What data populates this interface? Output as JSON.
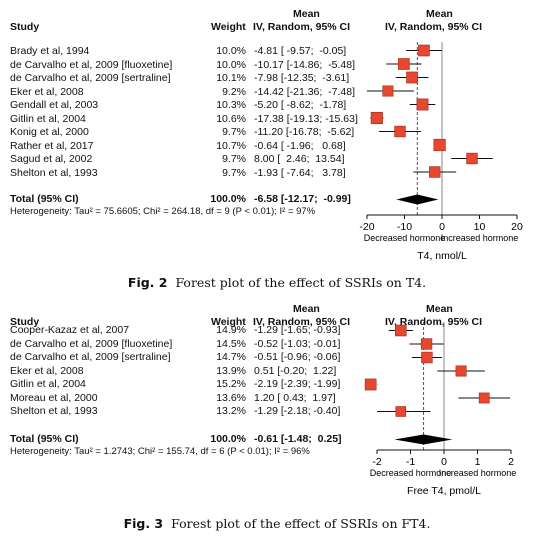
{
  "chart_data": [
    {
      "type": "forest",
      "header": {
        "study": "Study",
        "weight": "Weight",
        "ci_top": "Mean",
        "ci_bottom": "IV, Random, 95% CI",
        "plot_top": "Mean",
        "plot_bottom": "IV, Random, 95% CI"
      },
      "studies": [
        {
          "name": "Brady et al, 1994",
          "weight": "10.0%",
          "ci_text": "-4.81 [ -9.57;  -0.05]",
          "mean": -4.81,
          "lo": -9.57,
          "hi": -0.05,
          "w": 10.0
        },
        {
          "name": "de Carvalho et al, 2009 [fluoxetine]",
          "weight": "10.0%",
          "ci_text": "-10.17 [-14.86;  -5.48]",
          "mean": -10.17,
          "lo": -14.86,
          "hi": -5.48,
          "w": 10.0
        },
        {
          "name": "de Carvalho et al, 2009 [sertraline]",
          "weight": "10.1%",
          "ci_text": "-7.98 [-12.35;  -3.61]",
          "mean": -7.98,
          "lo": -12.35,
          "hi": -3.61,
          "w": 10.1
        },
        {
          "name": "Eker et al, 2008",
          "weight": "9.2%",
          "ci_text": "-14.42 [-21.36;  -7.48]",
          "mean": -14.42,
          "lo": -21.36,
          "hi": -7.48,
          "w": 9.2
        },
        {
          "name": "Gendall et al, 2003",
          "weight": "10.3%",
          "ci_text": "-5.20 [ -8.62;  -1.78]",
          "mean": -5.2,
          "lo": -8.62,
          "hi": -1.78,
          "w": 10.3
        },
        {
          "name": "Gitlin et al, 2004",
          "weight": "10.6%",
          "ci_text": "-17.38 [-19.13; -15.63]",
          "mean": -17.38,
          "lo": -19.13,
          "hi": -15.63,
          "w": 10.6
        },
        {
          "name": "Konig et al, 2000",
          "weight": "9.7%",
          "ci_text": "-11.20 [-16.78;  -5.62]",
          "mean": -11.2,
          "lo": -16.78,
          "hi": -5.62,
          "w": 9.7
        },
        {
          "name": "Rather et al, 2017",
          "weight": "10.7%",
          "ci_text": "-0.64 [ -1.96;   0.68]",
          "mean": -0.64,
          "lo": -1.96,
          "hi": 0.68,
          "w": 10.7
        },
        {
          "name": "Sagud et al, 2002",
          "weight": "9.7%",
          "ci_text": "8.00 [  2.46;  13.54]",
          "mean": 8.0,
          "lo": 2.46,
          "hi": 13.54,
          "w": 9.7
        },
        {
          "name": "Shelton et al, 1993",
          "weight": "9.7%",
          "ci_text": "-1.93 [ -7.64;   3.78]",
          "mean": -1.93,
          "lo": -7.64,
          "hi": 3.78,
          "w": 9.7
        }
      ],
      "total": {
        "label": "Total (95% CI)",
        "weight": "100.0%",
        "ci_text": "-6.58 [-12.17;  -0.99]",
        "mean": -6.58,
        "lo": -12.17,
        "hi": -0.99
      },
      "heterogeneity": "Heterogeneity: Tau² = 75.6605; Chi² = 264.18, df = 9 (P < 0.01); I² = 97%",
      "xlim": [
        -20,
        20
      ],
      "ticks": [
        -20,
        -10,
        0,
        10,
        20
      ],
      "left_label": "Decreased hormone",
      "right_label": "Increased hormone",
      "xlabel": "T4, nmol/L",
      "caption_num": "Fig. 2",
      "caption_text": "Forest plot of the effect of SSRIs on T4."
    },
    {
      "type": "forest",
      "header": {
        "study": "Study",
        "weight": "Weight",
        "ci_top": "Mean",
        "ci_bottom": "IV, Random, 95% CI",
        "plot_top": "Mean",
        "plot_bottom": "IV, Random, 95% CI"
      },
      "studies": [
        {
          "name": "Cooper-Kazaz et al, 2007",
          "weight": "14.9%",
          "ci_text": "-1.29 [-1.65; -0.93]",
          "mean": -1.29,
          "lo": -1.65,
          "hi": -0.93,
          "w": 14.9
        },
        {
          "name": "de Carvalho et al, 2009 [fluoxetine]",
          "weight": "14.5%",
          "ci_text": "-0.52 [-1.03; -0.01]",
          "mean": -0.52,
          "lo": -1.03,
          "hi": -0.01,
          "w": 14.5
        },
        {
          "name": "de Carvalho et al, 2009 [sertraline]",
          "weight": "14.7%",
          "ci_text": "-0.51 [-0.96; -0.06]",
          "mean": -0.51,
          "lo": -0.96,
          "hi": -0.06,
          "w": 14.7
        },
        {
          "name": "Eker et al, 2008",
          "weight": "13.9%",
          "ci_text": "0.51 [-0.20;  1.22]",
          "mean": 0.51,
          "lo": -0.2,
          "hi": 1.22,
          "w": 13.9
        },
        {
          "name": "Gitlin et al, 2004",
          "weight": "15.2%",
          "ci_text": "-2.19 [-2.39; -1.99]",
          "mean": -2.19,
          "lo": -2.39,
          "hi": -1.99,
          "w": 15.2
        },
        {
          "name": "Moreau et al, 2000",
          "weight": "13.6%",
          "ci_text": "1.20 [ 0.43;  1.97]",
          "mean": 1.2,
          "lo": 0.43,
          "hi": 1.97,
          "w": 13.6
        },
        {
          "name": "Shelton et al, 1993",
          "weight": "13.2%",
          "ci_text": "-1.29 [-2.18; -0.40]",
          "mean": -1.29,
          "lo": -2.18,
          "hi": -0.4,
          "w": 13.2
        }
      ],
      "total": {
        "label": "Total (95% CI)",
        "weight": "100.0%",
        "ci_text": "-0.61 [-1.48;  0.25]",
        "mean": -0.61,
        "lo": -1.48,
        "hi": 0.25
      },
      "heterogeneity": "Heterogeneity: Tau² = 1.2743; Chi² = 155.74, df = 6 (P < 0.01); I² = 96%",
      "xlim": [
        -2,
        2
      ],
      "ticks": [
        -2,
        -1,
        0,
        1,
        2
      ],
      "left_label": "Decreased hormone",
      "right_label": "Increased hormone",
      "xlabel": "Free T4, pmol/L",
      "caption_num": "Fig. 3",
      "caption_text": "Forest plot of the effect of SSRIs on FT4."
    }
  ],
  "colors": {
    "marker_fill": "#e8472f",
    "marker_edge": "#9a2a1a",
    "line": "#111111"
  }
}
